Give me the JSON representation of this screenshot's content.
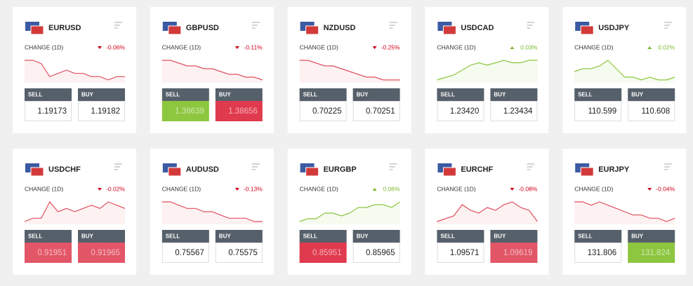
{
  "cards": [
    {
      "pair": "EURUSD",
      "change_label": "CHANGE (1D)",
      "change": "-0.06%",
      "direction": "down",
      "trend": [
        9,
        9,
        8,
        4,
        5,
        6,
        5,
        5,
        4,
        4,
        3,
        4,
        4
      ],
      "sell_label": "SELL",
      "buy_label": "BUY",
      "sell": "1.19173",
      "buy": "1.19182"
    },
    {
      "pair": "GBPUSD",
      "change_label": "CHANGE (1D)",
      "change": "-0.11%",
      "direction": "down",
      "trend": [
        9,
        9,
        8,
        7,
        7,
        6,
        6,
        5,
        4,
        4,
        3,
        3,
        2
      ],
      "sell_label": "SELL",
      "buy_label": "BUY",
      "sell": "1.38639",
      "buy": "1.38656",
      "sell_highlight": "#8dc63f",
      "buy_highlight": "#e03a4e"
    },
    {
      "pair": "NZDUSD",
      "change_label": "CHANGE (1D)",
      "change": "-0.25%",
      "direction": "down",
      "trend": [
        9,
        9,
        8,
        7,
        7,
        6,
        5,
        4,
        3,
        3,
        2,
        2,
        2
      ],
      "sell_label": "SELL",
      "buy_label": "BUY",
      "sell": "0.70225",
      "buy": "0.70251"
    },
    {
      "pair": "USDCAD",
      "change_label": "CHANGE (1D)",
      "change": "0.03%",
      "direction": "up",
      "trend": [
        1,
        2,
        3,
        5,
        7,
        8,
        7,
        8,
        9,
        8,
        8,
        9,
        9
      ],
      "sell_label": "SELL",
      "buy_label": "BUY",
      "sell": "1.23420",
      "buy": "1.23434"
    },
    {
      "pair": "USDJPY",
      "change_label": "CHANGE (1D)",
      "change": "0.02%",
      "direction": "up",
      "trend": [
        5,
        6,
        6,
        7,
        9,
        6,
        3,
        3,
        2,
        3,
        2,
        2,
        3
      ],
      "sell_label": "SELL",
      "buy_label": "BUY",
      "sell": "110.599",
      "buy": "110.608"
    },
    {
      "pair": "USDCHF",
      "change_label": "CHANGE (1D)",
      "change": "-0.02%",
      "direction": "down",
      "trend": [
        2,
        3,
        3,
        8,
        5,
        6,
        5,
        6,
        7,
        6,
        8,
        7,
        6
      ],
      "sell_label": "SELL",
      "buy_label": "BUY",
      "sell": "0.91951",
      "buy": "0.91965",
      "sell_highlight": "#e25667",
      "buy_highlight": "#e25667"
    },
    {
      "pair": "AUDUSD",
      "change_label": "CHANGE (1D)",
      "change": "-0.13%",
      "direction": "down",
      "trend": [
        8,
        8,
        7,
        6,
        6,
        5,
        5,
        4,
        3,
        3,
        3,
        2,
        2
      ],
      "sell_label": "SELL",
      "buy_label": "BUY",
      "sell": "0.75567",
      "buy": "0.75575"
    },
    {
      "pair": "EURGBP",
      "change_label": "CHANGE (1D)",
      "change": "0.06%",
      "direction": "up",
      "trend": [
        2,
        3,
        3,
        5,
        5,
        4,
        5,
        7,
        7,
        8,
        8,
        7,
        9
      ],
      "sell_label": "SELL",
      "buy_label": "BUY",
      "sell": "0.85951",
      "buy": "0.85965",
      "sell_highlight": "#e03a4e"
    },
    {
      "pair": "EURCHF",
      "change_label": "CHANGE (1D)",
      "change": "-0.08%",
      "direction": "down",
      "trend": [
        2,
        3,
        4,
        8,
        6,
        5,
        7,
        6,
        8,
        9,
        7,
        6,
        2
      ],
      "sell_label": "SELL",
      "buy_label": "BUY",
      "sell": "1.09571",
      "buy": "1.09619",
      "buy_highlight": "#e25667"
    },
    {
      "pair": "EURJPY",
      "change_label": "CHANGE (1D)",
      "change": "-0.04%",
      "direction": "down",
      "trend": [
        8,
        8,
        7,
        8,
        7,
        6,
        5,
        4,
        4,
        3,
        3,
        2,
        3
      ],
      "sell_label": "SELL",
      "buy_label": "BUY",
      "sell": "131.806",
      "buy": "131.824",
      "buy_highlight": "#8dc63f"
    }
  ]
}
